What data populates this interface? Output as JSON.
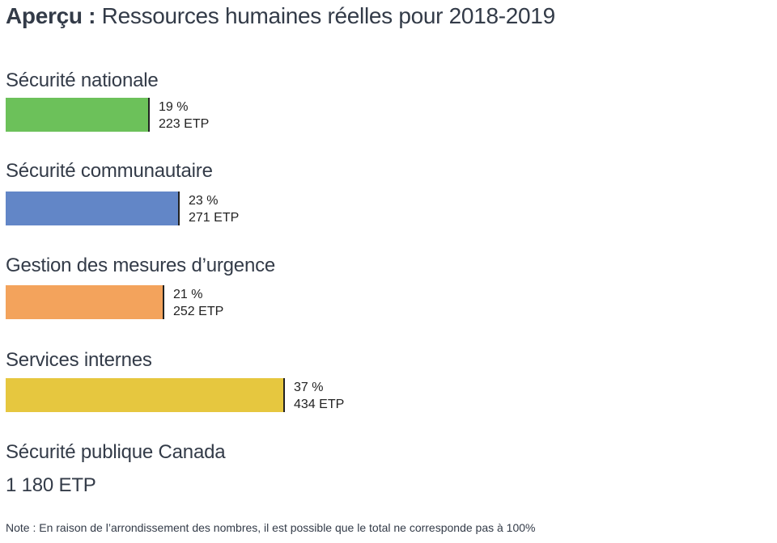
{
  "title": {
    "bold": "Aperçu :",
    "rest": "Ressources humaines réelles pour 2018-2019"
  },
  "chart_data": {
    "type": "bar",
    "orientation": "horizontal",
    "categories": [
      "Sécurité nationale",
      "Sécurité communautaire",
      "Gestion des mesures d’urgence",
      "Services internes"
    ],
    "values": [
      19,
      23,
      21,
      37
    ],
    "value_labels": [
      "19 %",
      "23 %",
      "21 %",
      "37 %"
    ],
    "etp": [
      223,
      271,
      252,
      434
    ],
    "etp_labels": [
      "223 ETP",
      "271 ETP",
      "252 ETP",
      "434 ETP"
    ],
    "colors": [
      "#6cc15a",
      "#6286c7",
      "#f3a35c",
      "#e6c73f"
    ],
    "xlim": [
      0,
      100
    ]
  },
  "total": {
    "label": "Sécurité publique Canada",
    "value": "1 180 ETP"
  },
  "note": "Note : En raison de l’arrondissement des nombres, il est possible que le total ne corresponde pas à 100%"
}
